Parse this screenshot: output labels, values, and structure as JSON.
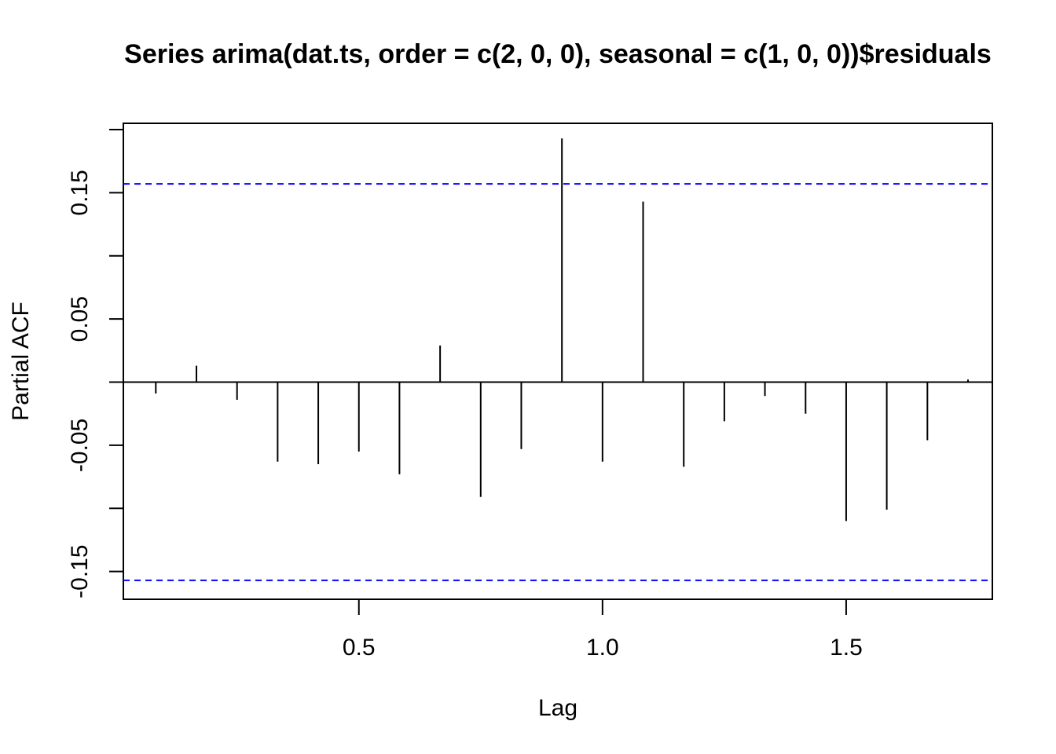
{
  "chart_data": {
    "type": "bar",
    "title": "Series  arima(dat.ts, order = c(2, 0, 0), seasonal = c(1, 0, 0))$residuals",
    "xlabel": "Lag",
    "ylabel": "Partial ACF",
    "xlim": [
      0.0167,
      1.8
    ],
    "ylim": [
      -0.172,
      0.205
    ],
    "x_ticks": [
      0.5,
      1.0,
      1.5
    ],
    "x_tick_labels": [
      "0.5",
      "1.0",
      "1.5"
    ],
    "y_ticks": [
      -0.15,
      -0.1,
      -0.05,
      0.0,
      0.05,
      0.1,
      0.15,
      0.2
    ],
    "y_tick_labels": [
      "-0.15",
      "",
      "-0.05",
      "",
      "0.05",
      "",
      "0.15",
      ""
    ],
    "lags": [
      0.0833,
      0.1667,
      0.25,
      0.3333,
      0.4167,
      0.5,
      0.5833,
      0.6667,
      0.75,
      0.8333,
      0.9167,
      1.0,
      1.0833,
      1.1667,
      1.25,
      1.3333,
      1.4167,
      1.5,
      1.5833,
      1.6667,
      1.75
    ],
    "values": [
      -0.009,
      0.013,
      -0.014,
      -0.063,
      -0.065,
      -0.055,
      -0.073,
      0.029,
      -0.091,
      -0.053,
      0.193,
      -0.063,
      0.143,
      -0.067,
      -0.031,
      -0.011,
      -0.025,
      -0.11,
      -0.101,
      -0.046,
      0.002
    ],
    "confidence_band": 0.157,
    "colors": {
      "bars": "#000000",
      "confidence_band": "#0000ff",
      "frame": "#000000"
    },
    "grid": false
  }
}
